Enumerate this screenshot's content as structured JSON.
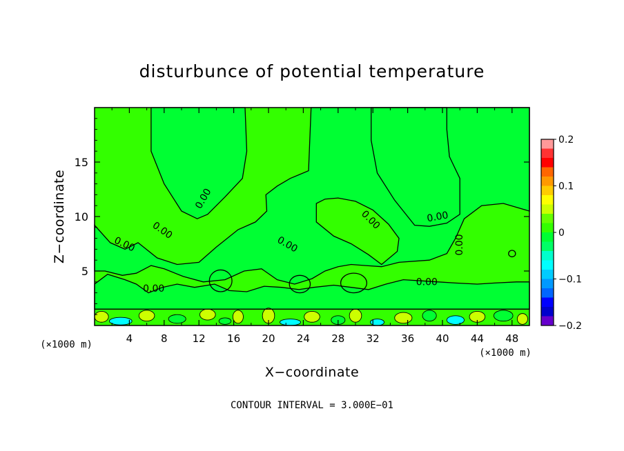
{
  "chart_data": {
    "type": "heatmap",
    "title": "disturbunce of potential temperature",
    "xlabel": "X−coordinate",
    "ylabel": "Z−coordinate",
    "x_unit": "(×1000 m)",
    "z_unit": "(×1000 m)",
    "xlim": [
      0,
      50
    ],
    "ylim": [
      0,
      20
    ],
    "x_ticks": [
      4,
      8,
      12,
      16,
      20,
      24,
      28,
      32,
      36,
      40,
      44,
      48
    ],
    "y_ticks": [
      5,
      10,
      15
    ],
    "footer": "CONTOUR INTERVAL = 3.000E−01",
    "contour_label": "0.00",
    "colorbar": {
      "range": [
        -0.2,
        0.2
      ],
      "tick_labels": [
        "0.2",
        "0.1",
        "0",
        "−0.1",
        "−0.2"
      ],
      "tick_values": [
        0.2,
        0.1,
        0,
        -0.1,
        -0.2
      ],
      "colors": [
        "#ff9999",
        "#ff3333",
        "#ff0000",
        "#ff6600",
        "#ff9900",
        "#ffcc00",
        "#ffff00",
        "#ccff00",
        "#66ff00",
        "#33ff00",
        "#00ff33",
        "#00ff66",
        "#00ffcc",
        "#00ffff",
        "#00ccff",
        "#0099ff",
        "#0066ff",
        "#0000ff",
        "#0000cc",
        "#6600cc"
      ]
    },
    "fill_colors": {
      "light": "#33ff00",
      "dark": "#00ff33",
      "near_surface": "#ccff00",
      "negative": "#00ffff"
    }
  }
}
